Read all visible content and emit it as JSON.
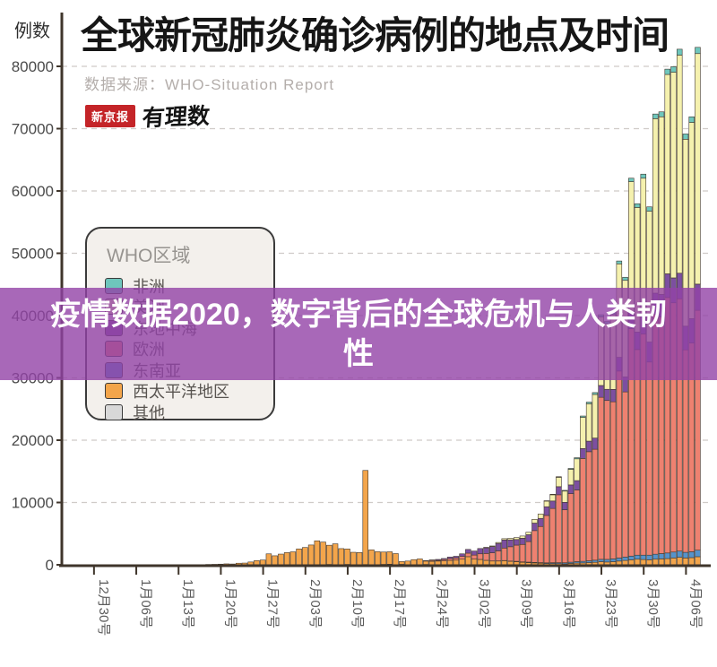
{
  "header": {
    "title": "全球新冠肺炎确诊病例的地点及时间",
    "source": "数据来源：WHO-Situation Report",
    "logo_badge": "新京报",
    "logo_script": "有理数"
  },
  "overlay": {
    "text": "疫情数据2020，数字背后的全球危机与人类韧性",
    "bg_color": "#9242A6"
  },
  "legend": {
    "title": "WHO区域",
    "items": [
      {
        "label": "非洲",
        "color": "#6EC6BC"
      },
      {
        "label": "美洲",
        "color": "#F5F1AE"
      },
      {
        "label": "东地中海",
        "color": "#7C4FA0"
      },
      {
        "label": "欧洲",
        "color": "#EE8170"
      },
      {
        "label": "东南亚",
        "color": "#5593CB"
      },
      {
        "label": "西太平洋地区",
        "color": "#F3A54B"
      },
      {
        "label": "其他",
        "color": "#D8D8D8"
      }
    ]
  },
  "chart_data": {
    "type": "bar",
    "stacked": true,
    "unit_label": "例数",
    "title": "全球新冠肺炎确诊病例的地点及时间",
    "grid": "dashed-horizontal",
    "ylim": [
      0,
      84000
    ],
    "yticks": [
      0,
      10000,
      20000,
      30000,
      40000,
      50000,
      60000,
      70000,
      80000
    ],
    "ytick_labels": [
      "0",
      "10000",
      "20000",
      "30000",
      "40000",
      "50000",
      "60000",
      "70000",
      "80000"
    ],
    "xtick_every": 7,
    "xtick_labels": [
      "12月30号",
      "1月06号",
      "1月13号",
      "1月20号",
      "1月27号",
      "2月03号",
      "2月10号",
      "2月17号",
      "2月24号",
      "3月02号",
      "3月09号",
      "3月16号",
      "3月23号",
      "3月30号",
      "4月06号"
    ],
    "dates": [
      "12-30",
      "12-31",
      "01-01",
      "01-02",
      "01-03",
      "01-04",
      "01-05",
      "01-06",
      "01-07",
      "01-08",
      "01-09",
      "01-10",
      "01-11",
      "01-12",
      "01-13",
      "01-14",
      "01-15",
      "01-16",
      "01-17",
      "01-18",
      "01-19",
      "01-20",
      "01-21",
      "01-22",
      "01-23",
      "01-24",
      "01-25",
      "01-26",
      "01-27",
      "01-28",
      "01-29",
      "01-30",
      "01-31",
      "02-01",
      "02-02",
      "02-03",
      "02-04",
      "02-05",
      "02-06",
      "02-07",
      "02-08",
      "02-09",
      "02-10",
      "02-11",
      "02-12",
      "02-13",
      "02-14",
      "02-15",
      "02-16",
      "02-17",
      "02-18",
      "02-19",
      "02-20",
      "02-21",
      "02-22",
      "02-23",
      "02-24",
      "02-25",
      "02-26",
      "02-27",
      "02-28",
      "02-29",
      "03-01",
      "03-02",
      "03-03",
      "03-04",
      "03-05",
      "03-06",
      "03-07",
      "03-08",
      "03-09",
      "03-10",
      "03-11",
      "03-12",
      "03-13",
      "03-14",
      "03-15",
      "03-16",
      "03-17",
      "03-18",
      "03-19",
      "03-20",
      "03-21",
      "03-22",
      "03-23",
      "03-24",
      "03-25",
      "03-26",
      "03-27",
      "03-28",
      "03-29",
      "03-30",
      "03-31",
      "04-01",
      "04-02",
      "04-03",
      "04-04",
      "04-05",
      "04-06",
      "04-07",
      "04-08"
    ],
    "series_note": "series listed in stacking order, bottom to top (daily new confirmed cases)",
    "series": [
      {
        "name": "其他",
        "color": "#D8D8D8",
        "values": [
          0,
          0,
          0,
          0,
          0,
          0,
          0,
          0,
          0,
          0,
          0,
          0,
          0,
          0,
          0,
          0,
          0,
          0,
          0,
          0,
          0,
          0,
          0,
          0,
          0,
          0,
          0,
          0,
          0,
          0,
          0,
          0,
          0,
          0,
          0,
          0,
          0,
          0,
          0,
          61,
          0,
          0,
          65,
          0,
          0,
          44,
          0,
          0,
          70,
          99,
          0,
          79,
          13,
          0,
          0,
          57,
          0,
          0,
          14,
          0,
          14,
          0,
          0,
          0,
          0,
          0,
          0,
          0,
          0,
          0,
          0,
          0,
          0,
          0,
          0,
          0,
          0,
          0,
          0,
          0,
          0,
          0,
          0,
          0,
          0,
          0,
          0,
          0,
          0,
          0,
          0,
          0,
          0,
          0,
          0,
          0,
          0,
          0,
          0,
          0,
          0
        ]
      },
      {
        "name": "西太平洋地区",
        "color": "#F3A54B",
        "values": [
          0,
          27,
          0,
          0,
          17,
          0,
          15,
          0,
          0,
          0,
          0,
          0,
          0,
          1,
          1,
          0,
          1,
          0,
          4,
          59,
          78,
          106,
          150,
          128,
          255,
          280,
          455,
          680,
          770,
          1760,
          1450,
          1720,
          1960,
          2080,
          2550,
          2780,
          3180,
          3850,
          3650,
          3080,
          3370,
          2600,
          2480,
          2010,
          1970,
          15100,
          2400,
          2100,
          1980,
          1990,
          1800,
          440,
          590,
          830,
          940,
          540,
          560,
          600,
          620,
          700,
          740,
          900,
          1300,
          900,
          850,
          700,
          600,
          600,
          650,
          550,
          500,
          400,
          350,
          300,
          250,
          200,
          200,
          180,
          150,
          220,
          280,
          300,
          350,
          400,
          500,
          450,
          500,
          600,
          700,
          800,
          900,
          850,
          800,
          900,
          950,
          1000,
          1100,
          1200,
          1100,
          1150,
          1300
        ]
      },
      {
        "name": "东南亚",
        "color": "#5593CB",
        "values": [
          0,
          0,
          0,
          0,
          0,
          0,
          0,
          0,
          0,
          0,
          0,
          0,
          0,
          0,
          0,
          0,
          0,
          0,
          0,
          0,
          0,
          0,
          0,
          0,
          0,
          0,
          0,
          0,
          0,
          0,
          0,
          0,
          0,
          0,
          0,
          0,
          0,
          0,
          0,
          0,
          0,
          0,
          0,
          0,
          0,
          0,
          0,
          0,
          0,
          0,
          0,
          0,
          0,
          0,
          0,
          0,
          0,
          0,
          0,
          0,
          0,
          0,
          10,
          10,
          15,
          20,
          25,
          30,
          40,
          50,
          60,
          70,
          80,
          90,
          100,
          120,
          140,
          160,
          180,
          200,
          230,
          260,
          300,
          340,
          380,
          420,
          460,
          500,
          550,
          600,
          650,
          700,
          750,
          800,
          850,
          900,
          950,
          1000,
          900,
          950,
          1050
        ]
      },
      {
        "name": "欧洲",
        "color": "#EE8170",
        "values": [
          0,
          0,
          0,
          0,
          0,
          0,
          0,
          0,
          0,
          0,
          0,
          0,
          0,
          0,
          0,
          0,
          0,
          0,
          0,
          0,
          0,
          0,
          0,
          0,
          0,
          0,
          0,
          0,
          0,
          0,
          0,
          0,
          0,
          0,
          0,
          0,
          0,
          0,
          0,
          0,
          0,
          0,
          0,
          0,
          0,
          0,
          0,
          0,
          0,
          0,
          0,
          0,
          0,
          0,
          0,
          78,
          155,
          119,
          202,
          289,
          345,
          448,
          560,
          650,
          900,
          1100,
          1300,
          1600,
          2000,
          2300,
          2600,
          2800,
          3300,
          5100,
          5800,
          7600,
          8700,
          10900,
          8500,
          11000,
          11500,
          16500,
          17500,
          17800,
          26000,
          25500,
          25200,
          30000,
          26500,
          36500,
          33000,
          35500,
          31000,
          38500,
          38000,
          41000,
          40000,
          40500,
          32500,
          33500,
          38500
        ]
      },
      {
        "name": "东地中海",
        "color": "#7C4FA0",
        "values": [
          0,
          0,
          0,
          0,
          0,
          0,
          0,
          0,
          0,
          0,
          0,
          0,
          0,
          0,
          0,
          0,
          0,
          0,
          0,
          0,
          0,
          0,
          0,
          0,
          0,
          0,
          0,
          0,
          0,
          0,
          0,
          0,
          0,
          0,
          0,
          0,
          0,
          0,
          0,
          0,
          0,
          0,
          0,
          0,
          0,
          0,
          0,
          0,
          0,
          0,
          0,
          0,
          2,
          16,
          29,
          47,
          73,
          146,
          173,
          254,
          267,
          415,
          600,
          650,
          850,
          900,
          1000,
          1200,
          1300,
          1100,
          900,
          1000,
          1100,
          1200,
          1300,
          1400,
          1200,
          1300,
          1200,
          1400,
          1500,
          1600,
          1700,
          1800,
          1900,
          1800,
          2000,
          2200,
          2400,
          2600,
          2800,
          3000,
          3200,
          3400,
          3600,
          3800,
          4000,
          4100,
          3800,
          3900,
          4200
        ]
      },
      {
        "name": "美洲",
        "color": "#F5F1AE",
        "values": [
          0,
          0,
          0,
          0,
          0,
          0,
          0,
          0,
          0,
          0,
          0,
          0,
          0,
          0,
          0,
          0,
          0,
          0,
          0,
          0,
          0,
          0,
          0,
          0,
          0,
          0,
          0,
          0,
          0,
          0,
          0,
          0,
          0,
          0,
          0,
          0,
          0,
          0,
          0,
          0,
          0,
          0,
          0,
          0,
          0,
          0,
          0,
          0,
          0,
          0,
          0,
          0,
          0,
          0,
          0,
          0,
          0,
          0,
          0,
          0,
          0,
          0,
          30,
          40,
          50,
          80,
          100,
          150,
          200,
          250,
          300,
          350,
          400,
          600,
          700,
          900,
          1000,
          1500,
          1800,
          2500,
          3500,
          5000,
          6000,
          7000,
          11000,
          10500,
          12000,
          15000,
          15500,
          21000,
          20000,
          22000,
          21000,
          28000,
          28500,
          32000,
          33000,
          35000,
          30000,
          31500,
          37000
        ]
      },
      {
        "name": "非洲",
        "color": "#6EC6BC",
        "values": [
          0,
          0,
          0,
          0,
          0,
          0,
          0,
          0,
          0,
          0,
          0,
          0,
          0,
          0,
          0,
          0,
          0,
          0,
          0,
          0,
          0,
          0,
          0,
          0,
          0,
          0,
          0,
          0,
          0,
          0,
          0,
          0,
          0,
          0,
          0,
          0,
          0,
          0,
          0,
          0,
          0,
          0,
          0,
          0,
          0,
          0,
          0,
          0,
          0,
          0,
          0,
          0,
          0,
          0,
          0,
          0,
          0,
          0,
          0,
          0,
          0,
          0,
          0,
          0,
          0,
          0,
          0,
          0,
          0,
          0,
          0,
          20,
          30,
          40,
          50,
          60,
          80,
          100,
          120,
          150,
          180,
          220,
          260,
          300,
          350,
          380,
          420,
          460,
          500,
          550,
          600,
          650,
          700,
          750,
          800,
          850,
          900,
          950,
          850,
          900,
          1000
        ]
      }
    ]
  }
}
